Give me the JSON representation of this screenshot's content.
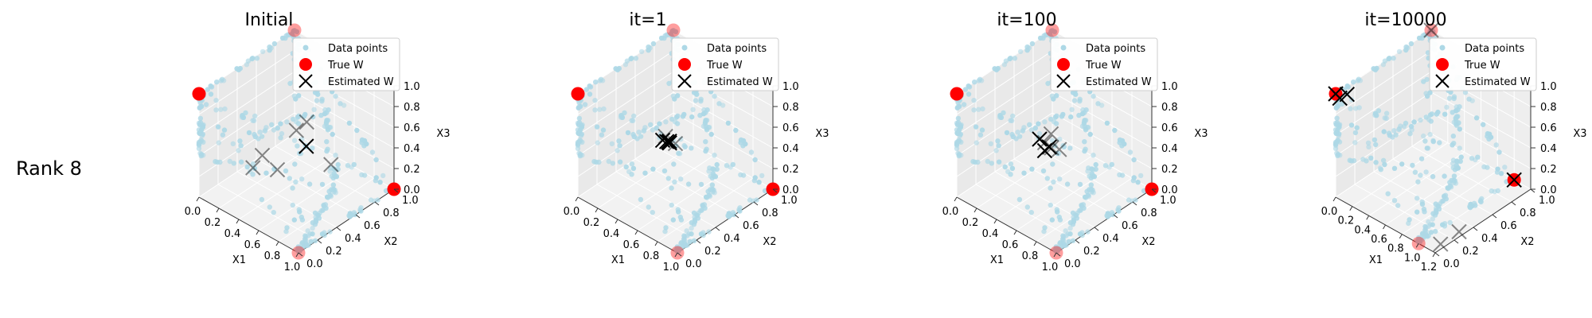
{
  "row_label": "Rank 8",
  "legend": {
    "data_points": "Data points",
    "true_w": "True W",
    "estimated_w": "Estimated W"
  },
  "colors": {
    "data_points": "#add8e6",
    "true_w": "#ff0000",
    "estimated_w": "#000000",
    "pane": "#f2f2f2",
    "pane_edge": "#dcdcdc"
  },
  "chart_data": [
    {
      "type": "scatter",
      "title": "Initial",
      "xlabel": "X1",
      "ylabel": "X2",
      "zlabel": "X3",
      "x_ticks": [
        "0.0",
        "0.2",
        "0.4",
        "0.6",
        "0.8",
        "1.0"
      ],
      "y_ticks": [
        "0.0",
        "0.2",
        "0.4",
        "0.6",
        "0.8",
        "1.0"
      ],
      "z_ticks": [
        "0.0",
        "0.2",
        "0.4",
        "0.6",
        "0.8",
        "1.0"
      ],
      "xlim": [
        0,
        1
      ],
      "ylim": [
        0,
        1
      ],
      "zlim": [
        0,
        1
      ],
      "true_w": [
        [
          1,
          1,
          0,
          "near"
        ],
        [
          0,
          0,
          1,
          "near"
        ],
        [
          0,
          1,
          1,
          "far"
        ],
        [
          1,
          0,
          0,
          "far"
        ]
      ],
      "estimated_w": [
        [
          0.45,
          0.55,
          0.55,
          "far"
        ],
        [
          0.65,
          0.45,
          0.8,
          "far"
        ],
        [
          0.3,
          0.35,
          0.35,
          "far"
        ],
        [
          0.5,
          0.3,
          0.35,
          "far"
        ],
        [
          0.55,
          0.55,
          0.45,
          "near"
        ],
        [
          0.75,
          0.6,
          0.35,
          "far"
        ],
        [
          0.35,
          0.2,
          0.35,
          "far"
        ]
      ]
    },
    {
      "type": "scatter",
      "title": "it=1",
      "xlabel": "X1",
      "ylabel": "X2",
      "zlabel": "X3",
      "x_ticks": [
        "0.0",
        "0.2",
        "0.4",
        "0.6",
        "0.8",
        "1.0"
      ],
      "y_ticks": [
        "0.0",
        "0.2",
        "0.4",
        "0.6",
        "0.8",
        "1.0"
      ],
      "z_ticks": [
        "0.0",
        "0.2",
        "0.4",
        "0.6",
        "0.8",
        "1.0"
      ],
      "xlim": [
        0,
        1
      ],
      "ylim": [
        0,
        1
      ],
      "zlim": [
        0,
        1
      ],
      "true_w": [
        [
          1,
          1,
          0,
          "near"
        ],
        [
          0,
          0,
          1,
          "near"
        ],
        [
          0,
          1,
          1,
          "far"
        ],
        [
          1,
          0,
          0,
          "far"
        ]
      ],
      "estimated_w": [
        [
          0.42,
          0.45,
          0.5,
          "near"
        ],
        [
          0.45,
          0.48,
          0.48,
          "near"
        ],
        [
          0.48,
          0.46,
          0.5,
          "near"
        ],
        [
          0.44,
          0.5,
          0.47,
          "near"
        ],
        [
          0.47,
          0.44,
          0.52,
          "near"
        ],
        [
          0.5,
          0.5,
          0.48,
          "far"
        ],
        [
          0.43,
          0.47,
          0.53,
          "far"
        ]
      ]
    },
    {
      "type": "scatter",
      "title": "it=100",
      "xlabel": "X1",
      "ylabel": "X2",
      "zlabel": "X3",
      "x_ticks": [
        "0.0",
        "0.2",
        "0.4",
        "0.6",
        "0.8",
        "1.0"
      ],
      "y_ticks": [
        "0.0",
        "0.2",
        "0.4",
        "0.6",
        "0.8",
        "1.0"
      ],
      "z_ticks": [
        "0.0",
        "0.2",
        "0.4",
        "0.6",
        "0.8",
        "1.0"
      ],
      "xlim": [
        0,
        1
      ],
      "ylim": [
        0,
        1
      ],
      "zlim": [
        0,
        1
      ],
      "true_w": [
        [
          1,
          1,
          0,
          "near"
        ],
        [
          0,
          0,
          1,
          "near"
        ],
        [
          0,
          1,
          1,
          "far"
        ],
        [
          1,
          0,
          0,
          "far"
        ]
      ],
      "estimated_w": [
        [
          0.4,
          0.45,
          0.5,
          "near"
        ],
        [
          0.48,
          0.42,
          0.45,
          "near"
        ],
        [
          0.45,
          0.5,
          0.42,
          "near"
        ],
        [
          0.52,
          0.45,
          0.48,
          "far"
        ],
        [
          0.42,
          0.55,
          0.5,
          "far"
        ],
        [
          0.5,
          0.4,
          0.55,
          "far"
        ],
        [
          0.55,
          0.5,
          0.45,
          "far"
        ]
      ]
    },
    {
      "type": "scatter",
      "title": "it=10000",
      "xlabel": "X1",
      "ylabel": "X2",
      "zlabel": "X3",
      "x_ticks": [
        "0.0",
        "0.2",
        "0.4",
        "0.6",
        "0.8",
        "1.0",
        "1.2"
      ],
      "y_ticks": [
        "0.0",
        "0.2",
        "0.4",
        "0.6",
        "0.8",
        "1.0"
      ],
      "z_ticks": [
        "0.0",
        "0.2",
        "0.4",
        "0.6",
        "0.8",
        "1.0"
      ],
      "xlim": [
        0,
        1.2
      ],
      "ylim": [
        0,
        1
      ],
      "zlim": [
        0,
        1
      ],
      "true_w": [
        [
          1,
          1,
          0,
          "near"
        ],
        [
          0,
          0,
          1,
          "near"
        ],
        [
          0,
          1,
          1,
          "far"
        ],
        [
          1,
          0,
          0,
          "far"
        ]
      ],
      "estimated_w": [
        [
          0,
          0,
          1,
          "near"
        ],
        [
          0.08,
          0.05,
          1,
          "near"
        ],
        [
          0.05,
          0,
          0.98,
          "near"
        ],
        [
          1,
          1,
          0,
          "near"
        ],
        [
          0,
          1,
          1,
          "far"
        ],
        [
          1.15,
          0.1,
          0,
          "far"
        ],
        [
          1.2,
          0.25,
          0.05,
          "far"
        ]
      ]
    }
  ]
}
